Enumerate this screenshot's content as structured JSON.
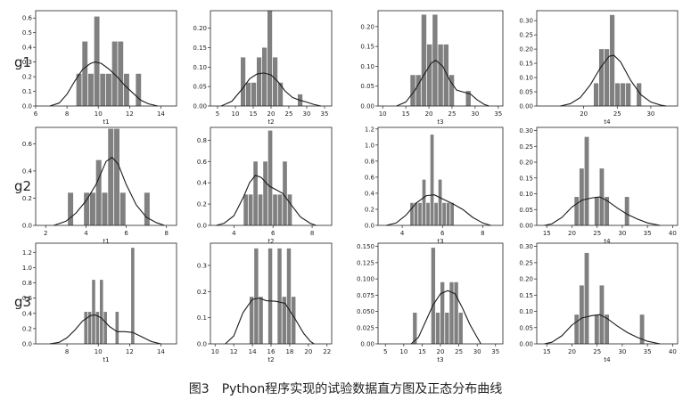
{
  "caption": "图3　Python程序实现的试验数据直方图及正态分布曲线",
  "row_labels": [
    "g1",
    "g2",
    "g3"
  ],
  "chart_data": [
    {
      "type": "bar",
      "row": 0,
      "col": 0,
      "xlabel": "t1",
      "xlim": [
        6,
        15
      ],
      "ylim": [
        0,
        0.65
      ],
      "xticks": [
        6,
        8,
        10,
        12,
        14
      ],
      "yticks": [
        "0.0",
        "0.1",
        "0.2",
        "0.3",
        "0.4",
        "0.5",
        "0.6"
      ],
      "bar_x": [
        8.6,
        8.98,
        9.36,
        9.74,
        10.12,
        10.5,
        10.88,
        11.26,
        11.64,
        12.4
      ],
      "bar_y": [
        0.22,
        0.44,
        0.22,
        0.61,
        0.22,
        0.22,
        0.44,
        0.44,
        0.22,
        0.22
      ],
      "bar_w": 0.38,
      "curve": [
        [
          6.9,
          0.0
        ],
        [
          7.5,
          0.02
        ],
        [
          8,
          0.08
        ],
        [
          8.5,
          0.17
        ],
        [
          9,
          0.25
        ],
        [
          9.5,
          0.29
        ],
        [
          9.8,
          0.3
        ],
        [
          10.2,
          0.29
        ],
        [
          10.7,
          0.25
        ],
        [
          11.2,
          0.2
        ],
        [
          11.7,
          0.14
        ],
        [
          12.2,
          0.09
        ],
        [
          12.7,
          0.04
        ],
        [
          13.2,
          0.015
        ],
        [
          13.8,
          0.0
        ]
      ]
    },
    {
      "type": "bar",
      "row": 0,
      "col": 1,
      "xlabel": "t2",
      "xlim": [
        3,
        37
      ],
      "ylim": [
        0,
        0.245
      ],
      "xticks": [
        5,
        10,
        15,
        20,
        25,
        30,
        35
      ],
      "yticks": [
        "0.00",
        "0.05",
        "0.10",
        "0.15",
        "0.20"
      ],
      "bar_x": [
        11.5,
        13,
        14.5,
        16,
        17.5,
        19,
        20.5,
        22,
        27.5
      ],
      "bar_y": [
        0.125,
        0.06,
        0.06,
        0.125,
        0.15,
        0.245,
        0.125,
        0.06,
        0.03
      ],
      "bar_w": 1.5,
      "curve": [
        [
          6,
          0.0
        ],
        [
          9,
          0.012
        ],
        [
          12,
          0.045
        ],
        [
          14,
          0.07
        ],
        [
          16,
          0.082
        ],
        [
          18,
          0.085
        ],
        [
          20,
          0.08
        ],
        [
          22,
          0.062
        ],
        [
          24,
          0.038
        ],
        [
          26,
          0.022
        ],
        [
          28,
          0.015
        ],
        [
          30,
          0.01
        ],
        [
          32,
          0.004
        ],
        [
          34,
          0.0
        ]
      ]
    },
    {
      "type": "bar",
      "row": 0,
      "col": 2,
      "xlabel": "t3",
      "xlim": [
        9,
        36
      ],
      "ylim": [
        0,
        0.24
      ],
      "xticks": [
        10,
        15,
        20,
        25,
        30,
        35
      ],
      "yticks": [
        "0.00",
        "0.05",
        "0.10",
        "0.15",
        "0.20"
      ],
      "bar_x": [
        16,
        17.2,
        18.4,
        19.6,
        20.8,
        22,
        23.2,
        24.4,
        28
      ],
      "bar_y": [
        0.078,
        0.078,
        0.23,
        0.155,
        0.23,
        0.155,
        0.155,
        0.078,
        0.038
      ],
      "bar_w": 1.2,
      "curve": [
        [
          13,
          0.0
        ],
        [
          15,
          0.01
        ],
        [
          17,
          0.04
        ],
        [
          19,
          0.08
        ],
        [
          20.5,
          0.108
        ],
        [
          21.5,
          0.115
        ],
        [
          23,
          0.1
        ],
        [
          24.5,
          0.065
        ],
        [
          26,
          0.04
        ],
        [
          27.5,
          0.035
        ],
        [
          29,
          0.03
        ],
        [
          30.5,
          0.015
        ],
        [
          32,
          0.004
        ],
        [
          33,
          0.0
        ]
      ]
    },
    {
      "type": "bar",
      "row": 0,
      "col": 3,
      "xlabel": "t4",
      "xlim": [
        13,
        34
      ],
      "ylim": [
        0,
        0.335
      ],
      "xticks": [
        20,
        25,
        30
      ],
      "yticks": [
        "0.00",
        "0.05",
        "0.10",
        "0.15",
        "0.20",
        "0.25",
        "0.30"
      ],
      "bar_x": [
        21.5,
        22.3,
        23.1,
        23.9,
        24.7,
        25.5,
        26.3,
        27.9
      ],
      "bar_y": [
        0.08,
        0.2,
        0.2,
        0.32,
        0.08,
        0.08,
        0.08,
        0.08
      ],
      "bar_w": 0.8,
      "curve": [
        [
          16.5,
          0.0
        ],
        [
          18,
          0.008
        ],
        [
          19.5,
          0.03
        ],
        [
          21,
          0.075
        ],
        [
          22.5,
          0.135
        ],
        [
          23.8,
          0.175
        ],
        [
          24.5,
          0.178
        ],
        [
          25.5,
          0.155
        ],
        [
          27,
          0.09
        ],
        [
          28.5,
          0.04
        ],
        [
          30,
          0.014
        ],
        [
          31.5,
          0.003
        ],
        [
          32.3,
          0.0
        ]
      ]
    },
    {
      "type": "bar",
      "row": 1,
      "col": 0,
      "xlabel": "t1",
      "xlim": [
        1.5,
        8.5
      ],
      "ylim": [
        0,
        0.72
      ],
      "xticks": [
        2,
        4,
        6,
        8
      ],
      "yticks": [
        "0.0",
        "0.2",
        "0.4",
        "0.6"
      ],
      "bar_x": [
        3.1,
        3.9,
        4.2,
        4.5,
        4.8,
        5.1,
        5.4,
        5.7,
        6.9
      ],
      "bar_y": [
        0.24,
        0.24,
        0.24,
        0.48,
        0.24,
        0.71,
        0.71,
        0.24,
        0.24
      ],
      "bar_w": 0.3,
      "curve": [
        [
          2.4,
          0.0
        ],
        [
          3,
          0.03
        ],
        [
          3.5,
          0.09
        ],
        [
          4,
          0.18
        ],
        [
          4.5,
          0.3
        ],
        [
          5,
          0.47
        ],
        [
          5.3,
          0.5
        ],
        [
          5.6,
          0.45
        ],
        [
          6,
          0.3
        ],
        [
          6.5,
          0.15
        ],
        [
          7,
          0.06
        ],
        [
          7.5,
          0.02
        ],
        [
          7.9,
          0.0
        ]
      ]
    },
    {
      "type": "bar",
      "row": 1,
      "col": 1,
      "xlabel": "t2",
      "xlim": [
        2.8,
        9
      ],
      "ylim": [
        0,
        0.92
      ],
      "xticks": [
        4,
        6,
        8
      ],
      "yticks": [
        "0.0",
        "0.2",
        "0.4",
        "0.6",
        "0.8"
      ],
      "bar_x": [
        4.5,
        4.75,
        5.0,
        5.25,
        5.5,
        5.75,
        6.0,
        6.25,
        6.5,
        6.75
      ],
      "bar_y": [
        0.29,
        0.29,
        0.6,
        0.29,
        0.6,
        0.89,
        0.29,
        0.29,
        0.6,
        0.29
      ],
      "bar_w": 0.25,
      "curve": [
        [
          3.1,
          0.0
        ],
        [
          3.5,
          0.02
        ],
        [
          4,
          0.09
        ],
        [
          4.5,
          0.27
        ],
        [
          4.8,
          0.4
        ],
        [
          5.1,
          0.47
        ],
        [
          5.4,
          0.45
        ],
        [
          5.8,
          0.37
        ],
        [
          6.2,
          0.33
        ],
        [
          6.5,
          0.3
        ],
        [
          6.9,
          0.2
        ],
        [
          7.4,
          0.08
        ],
        [
          7.9,
          0.02
        ],
        [
          8.2,
          0.0
        ]
      ]
    },
    {
      "type": "bar",
      "row": 1,
      "col": 2,
      "xlabel": "t3",
      "xlim": [
        2.8,
        9
      ],
      "ylim": [
        0,
        1.22
      ],
      "xticks": [
        4,
        6,
        8
      ],
      "yticks": [
        "0.0",
        "0.2",
        "0.4",
        "0.6",
        "0.8",
        "1.0",
        "1.2"
      ],
      "bar_x": [
        4.4,
        4.6,
        4.8,
        5.0,
        5.2,
        5.4,
        5.6,
        5.8,
        6.0,
        6.2,
        6.4
      ],
      "bar_y": [
        0.28,
        0.28,
        0.28,
        0.57,
        0.28,
        1.13,
        0.28,
        0.57,
        0.28,
        0.28,
        0.28
      ],
      "bar_w": 0.2,
      "curve": [
        [
          3.2,
          0.0
        ],
        [
          3.7,
          0.03
        ],
        [
          4.2,
          0.13
        ],
        [
          4.7,
          0.28
        ],
        [
          5.2,
          0.37
        ],
        [
          5.6,
          0.38
        ],
        [
          6,
          0.33
        ],
        [
          6.5,
          0.27
        ],
        [
          7,
          0.2
        ],
        [
          7.5,
          0.1
        ],
        [
          8,
          0.03
        ],
        [
          8.4,
          0.0
        ]
      ]
    },
    {
      "type": "bar",
      "row": 1,
      "col": 3,
      "xlabel": "t4",
      "xlim": [
        13,
        41
      ],
      "ylim": [
        0,
        0.31
      ],
      "xticks": [
        15,
        20,
        25,
        30,
        35,
        40
      ],
      "yticks": [
        "0.00",
        "0.05",
        "0.10",
        "0.15",
        "0.20",
        "0.25",
        "0.30"
      ],
      "bar_x": [
        20.5,
        21.5,
        22.5,
        24.5,
        25.5,
        26.5,
        30.5
      ],
      "bar_y": [
        0.09,
        0.18,
        0.28,
        0.09,
        0.18,
        0.09,
        0.09
      ],
      "bar_w": 1.0,
      "curve": [
        [
          14.5,
          0.0
        ],
        [
          16,
          0.005
        ],
        [
          18,
          0.025
        ],
        [
          20,
          0.058
        ],
        [
          22,
          0.08
        ],
        [
          24,
          0.087
        ],
        [
          25.5,
          0.09
        ],
        [
          27,
          0.078
        ],
        [
          29,
          0.055
        ],
        [
          31,
          0.035
        ],
        [
          33,
          0.02
        ],
        [
          35,
          0.008
        ],
        [
          37.5,
          0.0
        ]
      ]
    },
    {
      "type": "bar",
      "row": 2,
      "col": 0,
      "xlabel": "t1",
      "xlim": [
        6,
        15
      ],
      "ylim": [
        0,
        1.32
      ],
      "xticks": [
        8,
        10,
        12,
        14
      ],
      "yticks": [
        "0.0",
        "0.2",
        "0.4",
        "0.6",
        "0.8",
        "1.0",
        "1.2"
      ],
      "bar_x": [
        9.1,
        9.35,
        9.6,
        9.85,
        10.1,
        10.35,
        11.1,
        12.1
      ],
      "bar_y": [
        0.42,
        0.42,
        0.84,
        0.42,
        0.84,
        0.42,
        0.42,
        1.26
      ],
      "bar_w": 0.25,
      "curve": [
        [
          6.9,
          0.0
        ],
        [
          7.5,
          0.02
        ],
        [
          8,
          0.08
        ],
        [
          8.5,
          0.18
        ],
        [
          9,
          0.3
        ],
        [
          9.5,
          0.37
        ],
        [
          9.8,
          0.38
        ],
        [
          10.2,
          0.34
        ],
        [
          10.7,
          0.23
        ],
        [
          11.2,
          0.16
        ],
        [
          11.7,
          0.16
        ],
        [
          12.2,
          0.15
        ],
        [
          12.8,
          0.09
        ],
        [
          13.4,
          0.03
        ],
        [
          14,
          0.0
        ]
      ]
    },
    {
      "type": "bar",
      "row": 2,
      "col": 1,
      "xlabel": "t2",
      "xlim": [
        9.5,
        22.5
      ],
      "ylim": [
        0,
        0.385
      ],
      "xticks": [
        10,
        12,
        14,
        16,
        18,
        20,
        22
      ],
      "yticks": [
        "0.0",
        "0.1",
        "0.2",
        "0.3"
      ],
      "bar_x": [
        13.7,
        14.2,
        14.7,
        15.7,
        16.7,
        17.2,
        17.7,
        18.2
      ],
      "bar_y": [
        0.18,
        0.365,
        0.18,
        0.365,
        0.365,
        0.18,
        0.365,
        0.18
      ],
      "bar_w": 0.5,
      "curve": [
        [
          11.1,
          0.0
        ],
        [
          12,
          0.03
        ],
        [
          13,
          0.12
        ],
        [
          14,
          0.17
        ],
        [
          14.7,
          0.175
        ],
        [
          15.5,
          0.165
        ],
        [
          16.5,
          0.163
        ],
        [
          17.5,
          0.155
        ],
        [
          18.5,
          0.1
        ],
        [
          19.5,
          0.04
        ],
        [
          20.2,
          0.01
        ],
        [
          20.6,
          0.0
        ]
      ]
    },
    {
      "type": "bar",
      "row": 2,
      "col": 2,
      "xlabel": "t3",
      "xlim": [
        3,
        37
      ],
      "ylim": [
        0,
        0.155
      ],
      "xticks": [
        5,
        10,
        15,
        20,
        25,
        30,
        35
      ],
      "yticks": [
        "0.00",
        "0.025",
        "0.050",
        "0.075",
        "0.100",
        "0.125",
        "0.150"
      ],
      "bar_x": [
        12.5,
        17.5,
        18.75,
        20,
        21.25,
        22.5,
        23.75,
        25
      ],
      "bar_y": [
        0.048,
        0.148,
        0.048,
        0.095,
        0.048,
        0.095,
        0.095,
        0.048
      ],
      "bar_w": 1.25,
      "curve": [
        [
          12,
          0.0
        ],
        [
          14,
          0.01
        ],
        [
          16,
          0.035
        ],
        [
          18,
          0.06
        ],
        [
          20,
          0.077
        ],
        [
          22,
          0.082
        ],
        [
          24,
          0.077
        ],
        [
          26,
          0.055
        ],
        [
          28,
          0.03
        ],
        [
          30,
          0.01
        ],
        [
          31,
          0.0
        ]
      ]
    },
    {
      "type": "bar",
      "row": 2,
      "col": 3,
      "xlabel": "t4",
      "xlim": [
        13,
        41
      ],
      "ylim": [
        0,
        0.31
      ],
      "xticks": [
        15,
        20,
        25,
        30,
        35,
        40
      ],
      "yticks": [
        "0.00",
        "0.05",
        "0.10",
        "0.15",
        "0.20",
        "0.25",
        "0.30"
      ],
      "bar_x": [
        20.5,
        21.5,
        22.5,
        24.5,
        25.5,
        26.5,
        33.5
      ],
      "bar_y": [
        0.09,
        0.18,
        0.28,
        0.09,
        0.18,
        0.09,
        0.09
      ],
      "bar_w": 1.0,
      "curve": [
        [
          14.5,
          0.0
        ],
        [
          16,
          0.005
        ],
        [
          18,
          0.025
        ],
        [
          20,
          0.058
        ],
        [
          22,
          0.08
        ],
        [
          24,
          0.087
        ],
        [
          25.5,
          0.09
        ],
        [
          27,
          0.078
        ],
        [
          29,
          0.055
        ],
        [
          31,
          0.035
        ],
        [
          33,
          0.02
        ],
        [
          35,
          0.008
        ],
        [
          37.5,
          0.0
        ]
      ]
    }
  ]
}
